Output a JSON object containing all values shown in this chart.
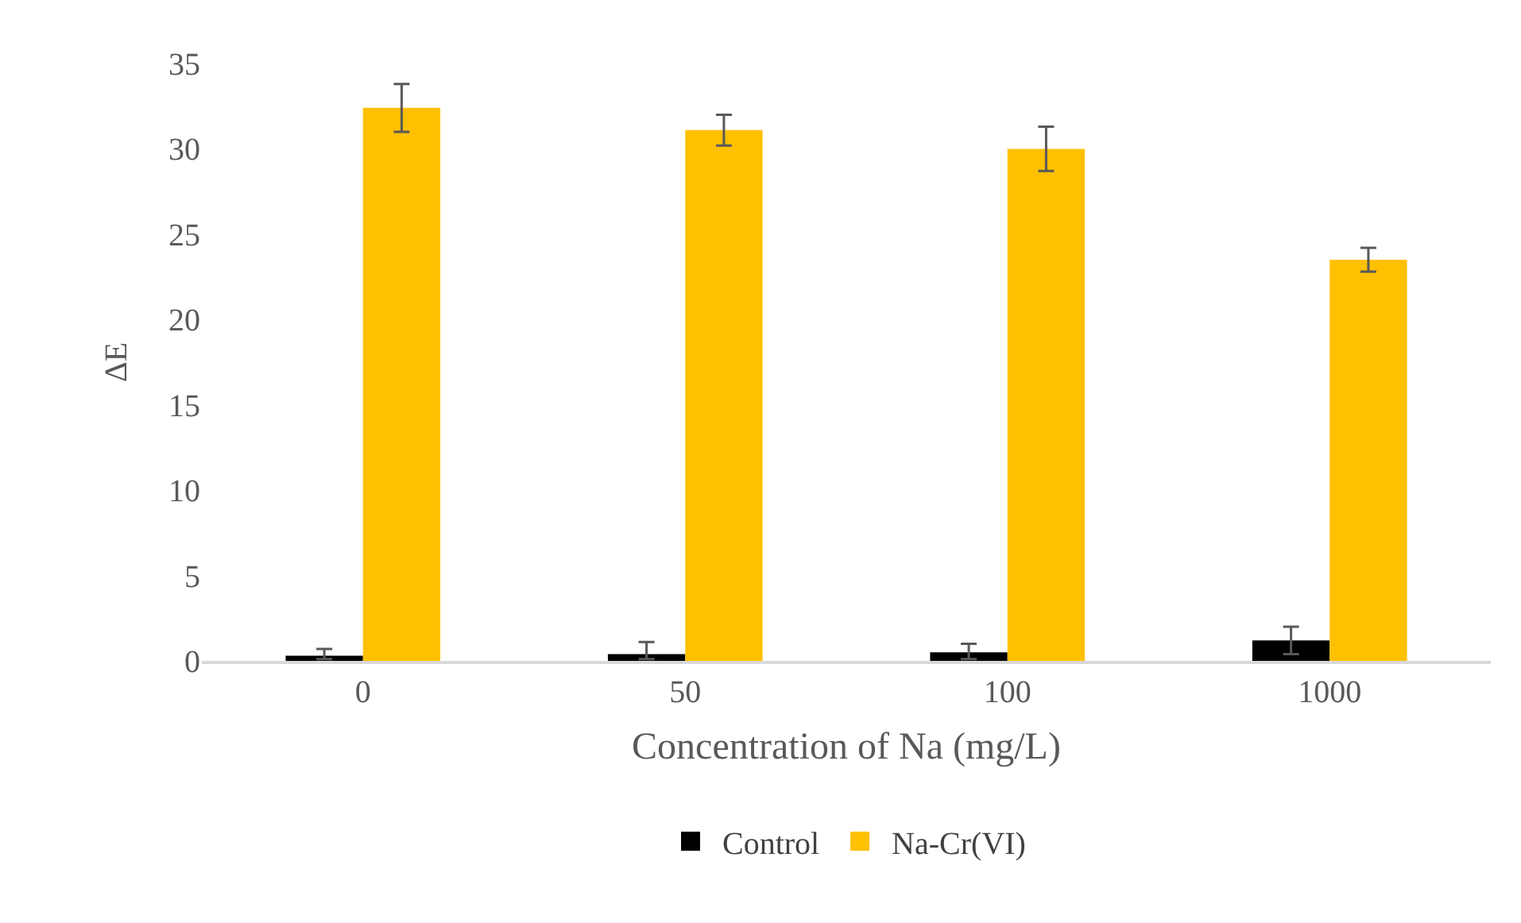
{
  "chart_data": {
    "type": "bar",
    "xlabel": "Concentration of Na (mg/L)",
    "ylabel": "ΔE",
    "categories": [
      "0",
      "50",
      "100",
      "1000"
    ],
    "series": [
      {
        "name": "Control",
        "color": "#000000",
        "values": [
          0.3,
          0.4,
          0.5,
          1.2
        ],
        "errors": [
          [
            0.1,
            0.7
          ],
          [
            0.1,
            1.1
          ],
          [
            0.1,
            1.0
          ],
          [
            0.4,
            2.0
          ]
        ]
      },
      {
        "name": "Na-Cr(VI)",
        "color": "#ffc000",
        "values": [
          32.4,
          31.1,
          30.0,
          23.5
        ],
        "errors": [
          1.4,
          0.9,
          1.3,
          0.7
        ]
      }
    ],
    "ylim": [
      0,
      35
    ],
    "yticks": [
      0,
      5,
      10,
      15,
      20,
      25,
      30,
      35
    ],
    "grid": false,
    "legend": "bottom"
  }
}
